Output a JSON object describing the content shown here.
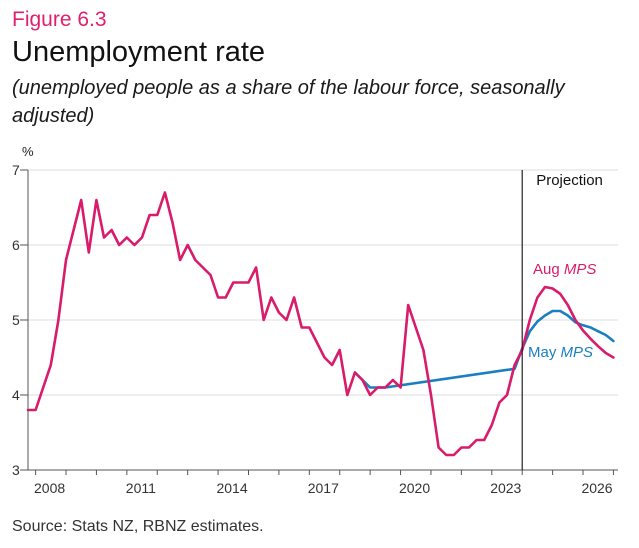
{
  "figure_label": "Figure 6.3",
  "title": "Unemployment rate",
  "subtitle": "(unemployed people as a share of the labour force, seasonally adjusted)",
  "unit": "%",
  "source": "Source: Stats NZ, RBNZ estimates.",
  "colors": {
    "aug": "#d81b6a",
    "may": "#1a7fc1",
    "accent": "#e0206f"
  },
  "chart_data": {
    "type": "line",
    "title": "Unemployment rate",
    "ylabel": "%",
    "xlim": [
      2007.75,
      2027.15
    ],
    "ylim": [
      3,
      7
    ],
    "yticks": [
      3,
      4,
      5,
      6,
      7
    ],
    "xticks": [
      {
        "value": 2008,
        "label": "2008"
      },
      {
        "value": 2011,
        "label": "2011"
      },
      {
        "value": 2014,
        "label": "2014"
      },
      {
        "value": 2017,
        "label": "2017"
      },
      {
        "value": 2020,
        "label": "2020"
      },
      {
        "value": 2023,
        "label": "2023"
      },
      {
        "value": 2026,
        "label": "2026"
      }
    ],
    "grid": true,
    "projection_start": 2024.0,
    "annotations": {
      "projection": "Projection",
      "aug_prefix": "Aug ",
      "may_prefix": "May ",
      "mps": "MPS"
    },
    "series": [
      {
        "name": "Aug MPS",
        "color": "#d81b6a",
        "points": [
          [
            2007.75,
            3.8
          ],
          [
            2008.0,
            3.8
          ],
          [
            2008.25,
            4.1
          ],
          [
            2008.5,
            4.4
          ],
          [
            2008.75,
            5.0
          ],
          [
            2009.0,
            5.8
          ],
          [
            2009.25,
            6.2
          ],
          [
            2009.5,
            6.6
          ],
          [
            2009.75,
            5.9
          ],
          [
            2010.0,
            6.6
          ],
          [
            2010.25,
            6.1
          ],
          [
            2010.5,
            6.2
          ],
          [
            2010.75,
            6.0
          ],
          [
            2011.0,
            6.1
          ],
          [
            2011.25,
            6.0
          ],
          [
            2011.5,
            6.1
          ],
          [
            2011.75,
            6.4
          ],
          [
            2012.0,
            6.4
          ],
          [
            2012.25,
            6.7
          ],
          [
            2012.5,
            6.3
          ],
          [
            2012.75,
            5.8
          ],
          [
            2013.0,
            6.0
          ],
          [
            2013.25,
            5.8
          ],
          [
            2013.5,
            5.7
          ],
          [
            2013.75,
            5.6
          ],
          [
            2014.0,
            5.3
          ],
          [
            2014.25,
            5.3
          ],
          [
            2014.5,
            5.5
          ],
          [
            2014.75,
            5.5
          ],
          [
            2015.0,
            5.5
          ],
          [
            2015.25,
            5.7
          ],
          [
            2015.5,
            5.0
          ],
          [
            2015.75,
            5.3
          ],
          [
            2016.0,
            5.1
          ],
          [
            2016.25,
            5.0
          ],
          [
            2016.5,
            5.3
          ],
          [
            2016.75,
            4.9
          ],
          [
            2017.0,
            4.9
          ],
          [
            2017.25,
            4.7
          ],
          [
            2017.5,
            4.5
          ],
          [
            2017.75,
            4.4
          ],
          [
            2018.0,
            4.6
          ],
          [
            2018.25,
            4.0
          ],
          [
            2018.5,
            4.3
          ],
          [
            2018.75,
            4.2
          ],
          [
            2019.0,
            4.0
          ],
          [
            2019.25,
            4.1
          ],
          [
            2019.5,
            4.1
          ],
          [
            2019.75,
            4.2
          ],
          [
            2020.0,
            4.1
          ],
          [
            2020.25,
            5.2
          ],
          [
            2020.5,
            4.9
          ],
          [
            2020.75,
            4.6
          ],
          [
            2021.0,
            4.0
          ],
          [
            2021.25,
            3.3
          ],
          [
            2021.5,
            3.2
          ],
          [
            2021.75,
            3.2
          ],
          [
            2022.0,
            3.3
          ],
          [
            2022.25,
            3.3
          ],
          [
            2022.5,
            3.4
          ],
          [
            2022.75,
            3.4
          ],
          [
            2023.0,
            3.6
          ],
          [
            2023.25,
            3.9
          ],
          [
            2023.5,
            4.0
          ],
          [
            2023.75,
            4.4
          ],
          [
            2024.0,
            4.6
          ],
          [
            2024.25,
            5.0
          ],
          [
            2024.5,
            5.3
          ],
          [
            2024.75,
            5.44
          ],
          [
            2025.0,
            5.42
          ],
          [
            2025.25,
            5.35
          ],
          [
            2025.5,
            5.2
          ],
          [
            2025.75,
            5.0
          ],
          [
            2026.0,
            4.86
          ],
          [
            2026.25,
            4.75
          ],
          [
            2026.5,
            4.65
          ],
          [
            2026.75,
            4.56
          ],
          [
            2027.0,
            4.5
          ]
        ]
      },
      {
        "name": "May MPS",
        "color": "#1a7fc1",
        "points": [
          [
            2018.5,
            4.3
          ],
          [
            2018.75,
            4.2
          ],
          [
            2019.0,
            4.1
          ],
          [
            2019.25,
            4.1
          ],
          [
            2019.5,
            4.1
          ],
          [
            2023.75,
            4.35
          ],
          [
            2024.0,
            4.62
          ],
          [
            2024.25,
            4.85
          ],
          [
            2024.5,
            4.98
          ],
          [
            2024.75,
            5.06
          ],
          [
            2025.0,
            5.12
          ],
          [
            2025.25,
            5.12
          ],
          [
            2025.5,
            5.06
          ],
          [
            2025.75,
            4.97
          ],
          [
            2026.0,
            4.93
          ],
          [
            2026.25,
            4.9
          ],
          [
            2026.5,
            4.85
          ],
          [
            2026.75,
            4.8
          ],
          [
            2027.0,
            4.72
          ]
        ]
      }
    ]
  }
}
